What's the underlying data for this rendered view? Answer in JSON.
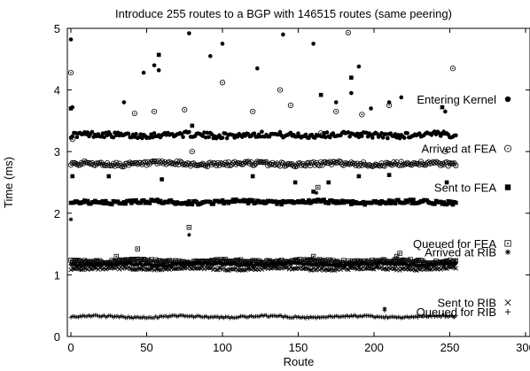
{
  "chart_data": {
    "type": "scatter",
    "title": "Introduce 255 routes to a BGP with 146515 routes (same peering)",
    "xlabel": "Route",
    "ylabel": "Time (ms)",
    "xlim": [
      0,
      300
    ],
    "ylim": [
      0,
      5
    ],
    "xticks": [
      0,
      50,
      100,
      150,
      200,
      250,
      300
    ],
    "yticks": [
      0,
      1,
      2,
      3,
      4,
      5
    ],
    "legend_position": "right, stacked beside the series",
    "route_count": 255,
    "series": [
      {
        "name": "Entering Kernel",
        "marker": "filled-circle",
        "baseline": 3.27,
        "outliers": [
          [
            0,
            4.82
          ],
          [
            1,
            3.72
          ],
          [
            35,
            3.8
          ],
          [
            48,
            4.28
          ],
          [
            58,
            4.32
          ],
          [
            55,
            4.4
          ],
          [
            78,
            4.92
          ],
          [
            92,
            4.55
          ],
          [
            100,
            4.75
          ],
          [
            123,
            4.35
          ],
          [
            140,
            4.9
          ],
          [
            160,
            4.75
          ],
          [
            167,
            3.3
          ],
          [
            175,
            3.8
          ],
          [
            185,
            3.95
          ],
          [
            190,
            4.38
          ],
          [
            198,
            3.7
          ],
          [
            210,
            3.8
          ],
          [
            218,
            3.88
          ],
          [
            247,
            3.65
          ]
        ]
      },
      {
        "name": "Arrived at FEA",
        "marker": "dotted-circle",
        "baseline": 2.8,
        "outliers": [
          [
            0,
            4.28
          ],
          [
            1,
            3.2
          ],
          [
            42,
            3.62
          ],
          [
            55,
            3.65
          ],
          [
            75,
            3.68
          ],
          [
            80,
            3.0
          ],
          [
            100,
            4.12
          ],
          [
            120,
            3.65
          ],
          [
            138,
            4.0
          ],
          [
            145,
            3.75
          ],
          [
            165,
            3.3
          ],
          [
            175,
            3.65
          ],
          [
            183,
            4.93
          ],
          [
            192,
            3.6
          ],
          [
            210,
            3.75
          ],
          [
            252,
            4.35
          ],
          [
            247,
            3.0
          ]
        ]
      },
      {
        "name": "Sent to FEA",
        "marker": "filled-square",
        "baseline": 2.18,
        "outliers": [
          [
            1,
            2.6
          ],
          [
            0,
            3.7
          ],
          [
            25,
            2.6
          ],
          [
            58,
            4.57
          ],
          [
            60,
            2.55
          ],
          [
            80,
            3.42
          ],
          [
            120,
            2.6
          ],
          [
            148,
            2.5
          ],
          [
            165,
            3.92
          ],
          [
            170,
            2.5
          ],
          [
            185,
            4.2
          ],
          [
            190,
            2.6
          ],
          [
            210,
            2.62
          ],
          [
            245,
            3.72
          ],
          [
            248,
            2.5
          ],
          [
            160,
            2.35
          ]
        ]
      },
      {
        "name": "Queued for FEA",
        "marker": "dotted-square",
        "baseline": 1.22,
        "outliers": [
          [
            44,
            1.42
          ],
          [
            78,
            1.77
          ],
          [
            163,
            2.42
          ],
          [
            160,
            1.3
          ],
          [
            215,
            1.3
          ],
          [
            217,
            1.35
          ],
          [
            30,
            1.3
          ]
        ]
      },
      {
        "name": "Arrived at RIB",
        "marker": "asterisk",
        "baseline": 1.17,
        "outliers": [
          [
            0,
            1.9
          ],
          [
            78,
            1.65
          ],
          [
            162,
            2.33
          ],
          [
            207,
            0.45
          ]
        ]
      },
      {
        "name": "Sent to RIB",
        "marker": "cross",
        "baseline": 1.1,
        "outliers": []
      },
      {
        "name": "Queued for RIB",
        "marker": "plus",
        "baseline": 0.32,
        "outliers": [
          [
            207,
            0.42
          ]
        ]
      }
    ]
  }
}
